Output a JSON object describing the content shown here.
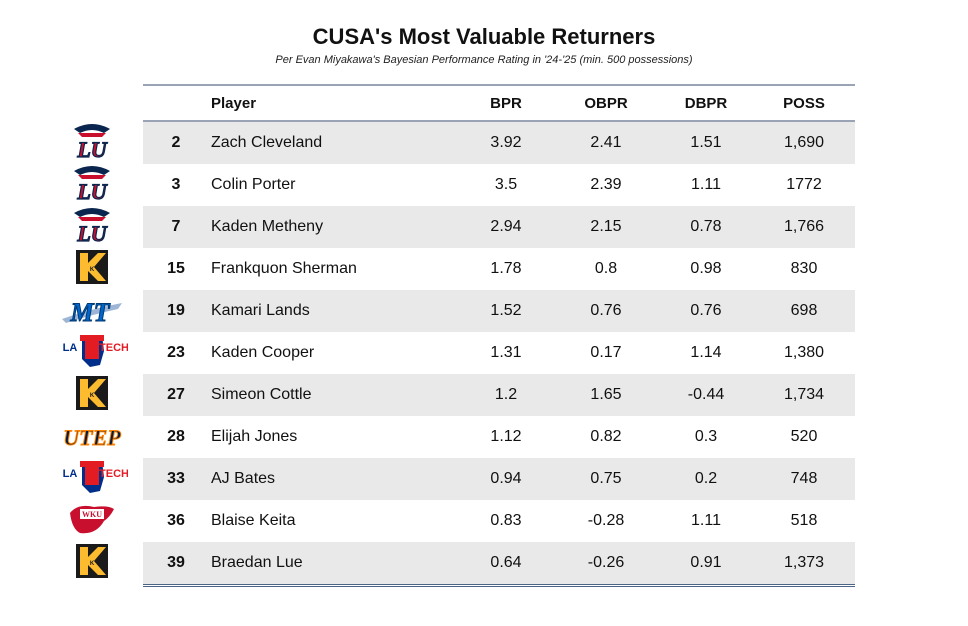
{
  "title": "CUSA's Most Valuable Returners",
  "subtitle": "Per Evan Miyakawa's Bayesian Performance Rating in '24-'25 (min. 500 possessions)",
  "columns": {
    "player": "Player",
    "bpr": "BPR",
    "obpr": "OBPR",
    "dbpr": "DBPR",
    "poss": "POSS"
  },
  "colors": {
    "shade": "#e9e9e9",
    "rule": "#9aa4b4",
    "bottom_rule": "#4d6584"
  },
  "rows": [
    {
      "rank": "2",
      "player": "Zach Cleveland",
      "bpr": "3.92",
      "obpr": "2.41",
      "dbpr": "1.51",
      "poss": "1,690",
      "logo": "liberty-logo"
    },
    {
      "rank": "3",
      "player": "Colin Porter",
      "bpr": "3.5",
      "obpr": "2.39",
      "dbpr": "1.11",
      "poss": "1772",
      "logo": "liberty-logo"
    },
    {
      "rank": "7",
      "player": "Kaden Metheny",
      "bpr": "2.94",
      "obpr": "2.15",
      "dbpr": "0.78",
      "poss": "1,766",
      "logo": "liberty-logo"
    },
    {
      "rank": "15",
      "player": "Frankquon Sherman",
      "bpr": "1.78",
      "obpr": "0.8",
      "dbpr": "0.98",
      "poss": "830",
      "logo": "kennesaw-state-logo"
    },
    {
      "rank": "19",
      "player": "Kamari Lands",
      "bpr": "1.52",
      "obpr": "0.76",
      "dbpr": "0.76",
      "poss": "698",
      "logo": "middle-tennessee-logo"
    },
    {
      "rank": "23",
      "player": "Kaden Cooper",
      "bpr": "1.31",
      "obpr": "0.17",
      "dbpr": "1.14",
      "poss": "1,380",
      "logo": "louisiana-tech-logo"
    },
    {
      "rank": "27",
      "player": "Simeon Cottle",
      "bpr": "1.2",
      "obpr": "1.65",
      "dbpr": "-0.44",
      "poss": "1,734",
      "logo": "kennesaw-state-logo"
    },
    {
      "rank": "28",
      "player": "Elijah Jones",
      "bpr": "1.12",
      "obpr": "0.82",
      "dbpr": "0.3",
      "poss": "520",
      "logo": "utep-logo"
    },
    {
      "rank": "33",
      "player": "AJ Bates",
      "bpr": "0.94",
      "obpr": "0.75",
      "dbpr": "0.2",
      "poss": "748",
      "logo": "louisiana-tech-logo"
    },
    {
      "rank": "36",
      "player": "Blaise Keita",
      "bpr": "0.83",
      "obpr": "-0.28",
      "dbpr": "1.11",
      "poss": "518",
      "logo": "western-kentucky-logo"
    },
    {
      "rank": "39",
      "player": "Braedan Lue",
      "bpr": "0.64",
      "obpr": "-0.26",
      "dbpr": "0.91",
      "poss": "1,373",
      "logo": "kennesaw-state-logo"
    }
  ],
  "logo_text": {
    "liberty": "LU",
    "kennesaw": "K",
    "mtsu": "MT",
    "latech_la": "LA",
    "latech_tech": "TECH",
    "utep": "UTEP",
    "wku": "WKU"
  }
}
